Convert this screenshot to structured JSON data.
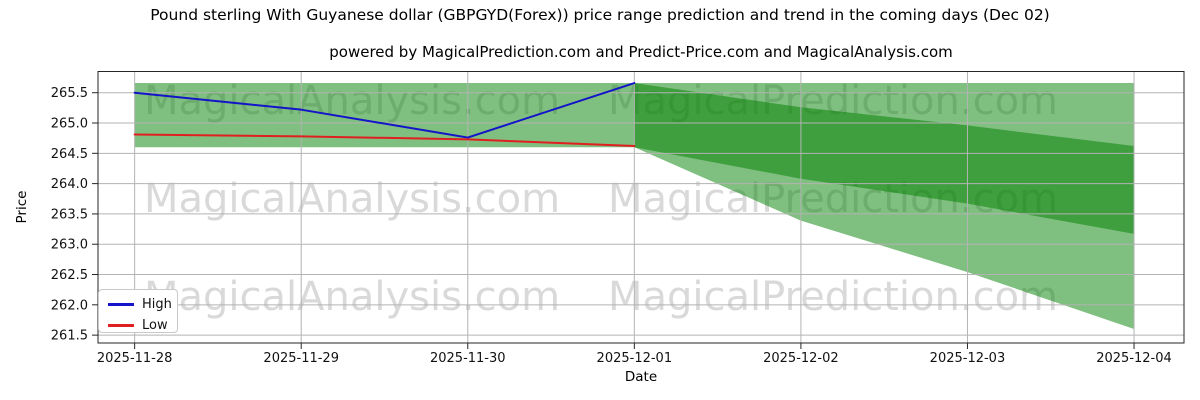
{
  "chart_data": {
    "type": "line",
    "title": "Pound sterling With Guyanese dollar (GBPGYD(Forex)) price range prediction and trend in the coming days (Dec 02)",
    "subtitle": "powered by MagicalPrediction.com and Predict-Price.com and MagicalAnalysis.com",
    "xlabel": "Date",
    "ylabel": "Price",
    "categories": [
      "2025-11-28",
      "2025-11-29",
      "2025-11-30",
      "2025-12-01",
      "2025-12-02",
      "2025-12-03",
      "2025-12-04"
    ],
    "yticks": [
      261.5,
      262.0,
      262.5,
      263.0,
      263.5,
      264.0,
      264.5,
      265.0,
      265.5
    ],
    "ylim": [
      261.37,
      265.85
    ],
    "xlim": [
      -0.22,
      6.3
    ],
    "grid": true,
    "grid_color": "#b3b3b3",
    "series": [
      {
        "name": "High",
        "color": "#1414c8",
        "x": [
          0,
          1,
          2,
          3
        ],
        "values": [
          265.5,
          265.22,
          264.76,
          265.66
        ]
      },
      {
        "name": "Low",
        "color": "#e02020",
        "x": [
          0,
          1,
          2,
          3
        ],
        "values": [
          264.81,
          264.78,
          264.73,
          264.62
        ]
      }
    ],
    "bands": [
      {
        "name": "history-range-band",
        "color": "rgba(0,128,0,0.5)",
        "x": [
          0,
          3
        ],
        "upper": [
          265.66,
          265.66
        ],
        "lower": [
          264.6,
          264.6
        ]
      },
      {
        "name": "forecast-high-range-band",
        "color": "rgba(0,128,0,0.5)",
        "x": [
          3,
          4,
          5,
          6
        ],
        "upper": [
          265.66,
          265.66,
          265.66,
          265.66
        ],
        "lower": [
          264.6,
          264.08,
          263.67,
          263.17
        ]
      },
      {
        "name": "forecast-low-range-band",
        "color": "rgba(0,128,0,0.5)",
        "x": [
          3,
          4,
          5,
          6
        ],
        "upper": [
          265.66,
          265.26,
          264.96,
          264.62
        ],
        "lower": [
          264.6,
          263.39,
          262.54,
          261.6
        ]
      }
    ],
    "legend": {
      "position": "lower left",
      "entries": [
        {
          "label": "High",
          "color": "#1414c8"
        },
        {
          "label": "Low",
          "color": "#e02020"
        }
      ]
    },
    "watermarks": {
      "texts": [
        "MagicalAnalysis.com",
        "MagicalPrediction.com"
      ],
      "color": "#808080",
      "opacity": 0.3
    }
  }
}
